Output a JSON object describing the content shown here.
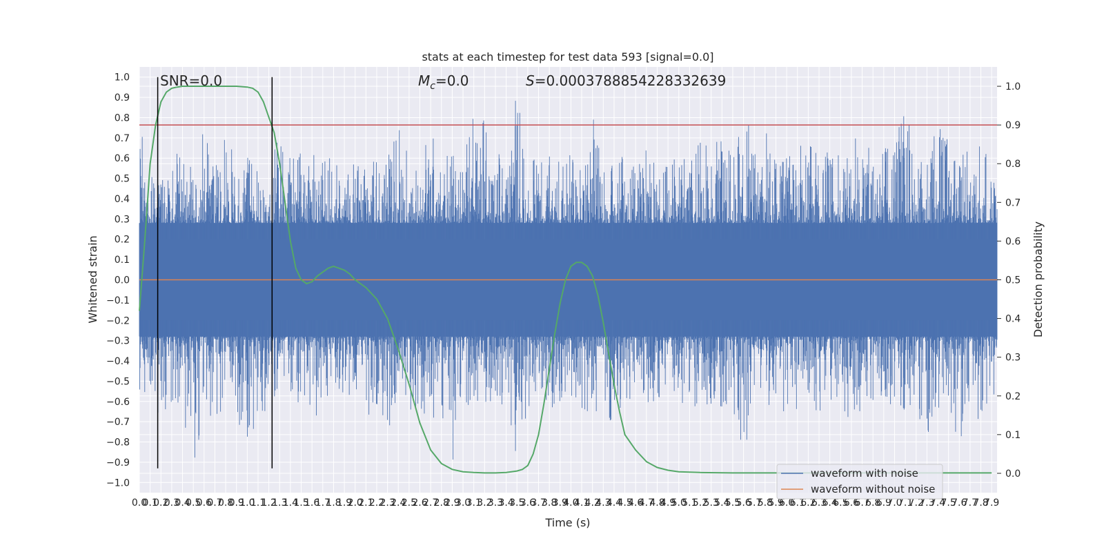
{
  "chart_data": {
    "type": "line",
    "title": "stats at each timestep for test data 593 [signal=0.0]",
    "xlabel": "Time (s)",
    "ylabel": "Whitened strain",
    "y2label": "Detection probability",
    "xlim": [
      0.0,
      7.95
    ],
    "ylim": [
      -1.05,
      1.05
    ],
    "y2lim": [
      -0.05,
      1.05
    ],
    "x_ticks": [
      0.0,
      0.1,
      0.2,
      0.3,
      0.4,
      0.5,
      0.6,
      0.7,
      0.8,
      0.9,
      1.0,
      1.1,
      1.2,
      1.3,
      1.4,
      1.5,
      1.6,
      1.7,
      1.8,
      1.9,
      2.0,
      2.1,
      2.2,
      2.3,
      2.4,
      2.5,
      2.6,
      2.7,
      2.8,
      2.9,
      3.0,
      3.1,
      3.2,
      3.3,
      3.4,
      3.5,
      3.6,
      3.7,
      3.8,
      3.9,
      4.0,
      4.1,
      4.2,
      4.3,
      4.4,
      4.5,
      4.6,
      4.7,
      4.8,
      4.9,
      5.0,
      5.1,
      5.2,
      5.3,
      5.4,
      5.5,
      5.6,
      5.7,
      5.8,
      5.9,
      6.0,
      6.1,
      6.2,
      6.3,
      6.4,
      6.5,
      6.6,
      6.7,
      6.8,
      6.9,
      7.0,
      7.1,
      7.2,
      7.3,
      7.4,
      7.5,
      7.6,
      7.7,
      7.8,
      7.9
    ],
    "x_tick_labels": [
      "0.0",
      "0.1",
      "0.2",
      "0.3",
      "0.4",
      "0.5",
      "0.6",
      "0.7",
      "0.8",
      "0.9",
      "1.0",
      "1.1",
      "1.2",
      "1.3",
      "1.4",
      "1.5",
      "1.6",
      "1.7",
      "1.8",
      "1.9",
      "2.0",
      "2.1",
      "2.2",
      "2.3",
      "2.4",
      "2.5",
      "2.6",
      "2.7",
      "2.8",
      "2.9",
      "3.0",
      "3.1",
      "3.2",
      "3.3",
      "3.4",
      "3.5",
      "3.6",
      "3.7",
      "3.8",
      "3.9",
      "4.0",
      "4.1",
      "4.2",
      "4.3",
      "4.4",
      "4.5",
      "4.6",
      "4.7",
      "4.8",
      "4.9",
      "5.0",
      "5.1",
      "5.2",
      "5.3",
      "5.4",
      "5.5",
      "5.6",
      "5.7",
      "5.8",
      "5.9",
      "6.0",
      "6.1",
      "6.2",
      "6.3",
      "6.4",
      "6.5",
      "6.6",
      "6.7",
      "6.8",
      "6.9",
      "7.0",
      "7.1",
      "7.2",
      "7.3",
      "7.4",
      "7.5",
      "7.6",
      "7.7",
      "7.8",
      "7.9"
    ],
    "y_ticks": [
      1.0,
      0.9,
      0.8,
      0.7,
      0.6,
      0.5,
      0.4,
      0.3,
      0.2,
      0.1,
      0.0,
      -0.1,
      -0.2,
      -0.3,
      -0.4,
      -0.5,
      -0.6,
      -0.7,
      -0.8,
      -0.9,
      -1.0
    ],
    "y_tick_labels": [
      "1.0",
      "0.9",
      "0.8",
      "0.7",
      "0.6",
      "0.5",
      "0.4",
      "0.3",
      "0.2",
      "0.1",
      "0.0",
      "−0.1",
      "−0.2",
      "−0.3",
      "−0.4",
      "−0.5",
      "−0.6",
      "−0.7",
      "−0.8",
      "−0.9",
      "−1.0"
    ],
    "y2_ticks": [
      1.0,
      0.9,
      0.8,
      0.7,
      0.6,
      0.5,
      0.4,
      0.3,
      0.2,
      0.1,
      0.0
    ],
    "y2_tick_labels": [
      "1.0",
      "0.9",
      "0.8",
      "0.7",
      "0.6",
      "0.5",
      "0.4",
      "0.3",
      "0.2",
      "0.1",
      "0.0"
    ],
    "grid": true,
    "legend_position": "bottom-right",
    "annotations": {
      "snr": "SNR=0.0",
      "mc_symbol": "M",
      "mc_sub": "c",
      "mc_value": "=0.0",
      "s_symbol": "S",
      "s_value": "=0.0003788854228332639"
    },
    "threshold_y2": 0.9,
    "vertical_lines_x": [
      0.17,
      1.23
    ],
    "series": [
      {
        "name": "waveform with noise",
        "color": "#4c72b0",
        "axis": "left",
        "envelope": {
          "x": [
            0.0,
            0.1,
            0.2,
            0.3,
            0.4,
            0.5,
            0.6,
            0.7,
            0.8,
            0.9,
            1.0,
            1.1,
            1.2,
            1.3,
            1.4,
            1.5,
            1.6,
            1.7,
            1.8,
            1.9,
            2.0,
            2.1,
            2.2,
            2.3,
            2.4,
            2.5,
            2.6,
            2.7,
            2.8,
            2.9,
            3.0,
            3.1,
            3.2,
            3.3,
            3.4,
            3.5,
            3.6,
            3.7,
            3.8,
            3.9,
            4.0,
            4.1,
            4.2,
            4.3,
            4.4,
            4.5,
            4.6,
            4.7,
            4.8,
            4.9,
            5.0,
            5.1,
            5.2,
            5.3,
            5.4,
            5.5,
            5.6,
            5.7,
            5.8,
            5.9,
            6.0,
            6.1,
            6.2,
            6.3,
            6.4,
            6.5,
            6.6,
            6.7,
            6.8,
            6.9,
            7.0,
            7.1,
            7.2,
            7.3,
            7.4,
            7.5,
            7.6,
            7.7,
            7.8,
            7.9
          ],
          "max": [
            0.76,
            0.6,
            0.5,
            0.52,
            0.75,
            0.62,
            0.74,
            0.62,
            0.84,
            0.55,
            0.62,
            0.57,
            0.6,
            0.75,
            0.62,
            0.66,
            0.64,
            0.7,
            0.66,
            0.55,
            0.58,
            0.54,
            0.6,
            0.63,
            0.85,
            0.6,
            0.6,
            0.75,
            0.62,
            0.62,
            0.58,
            0.83,
            0.9,
            0.62,
            0.64,
            0.98,
            0.62,
            0.58,
            0.64,
            0.6,
            0.66,
            0.62,
            0.83,
            0.62,
            0.64,
            0.6,
            0.62,
            0.64,
            0.66,
            0.58,
            0.62,
            0.66,
            0.72,
            0.62,
            0.74,
            0.64,
            0.91,
            0.62,
            0.78,
            0.64,
            0.62,
            0.7,
            0.74,
            0.6,
            0.77,
            0.64,
            0.8,
            0.62,
            0.72,
            0.66,
            0.74,
            0.99,
            0.62,
            0.66,
            0.8,
            0.7,
            0.72,
            0.62,
            0.74,
            0.6
          ],
          "min": [
            -0.56,
            -0.58,
            -0.7,
            -0.6,
            -0.66,
            -0.93,
            -0.68,
            -0.7,
            -0.62,
            -0.66,
            -0.88,
            -0.64,
            -0.77,
            -0.62,
            -0.6,
            -0.64,
            -0.72,
            -0.7,
            -0.62,
            -0.66,
            -0.58,
            -0.68,
            -0.64,
            -0.76,
            -0.62,
            -0.66,
            -0.64,
            -0.7,
            -0.68,
            -0.92,
            -0.62,
            -0.66,
            -0.64,
            -0.6,
            -0.68,
            -0.9,
            -0.64,
            -0.62,
            -0.66,
            -0.62,
            -0.6,
            -0.64,
            -0.68,
            -0.66,
            -0.77,
            -0.62,
            -0.6,
            -0.66,
            -0.64,
            -0.62,
            -0.6,
            -0.64,
            -0.66,
            -0.62,
            -0.68,
            -0.64,
            -0.92,
            -0.66,
            -0.62,
            -0.7,
            -0.64,
            -0.66,
            -0.62,
            -0.68,
            -0.66,
            -0.64,
            -0.7,
            -0.66,
            -0.62,
            -0.64,
            -0.68,
            -0.66,
            -0.8,
            -0.78,
            -0.66,
            -0.64,
            -0.82,
            -0.62,
            -0.76,
            -0.68
          ]
        }
      },
      {
        "name": "waveform without noise",
        "color": "#dd8452",
        "axis": "left",
        "x": [
          0.0,
          7.95
        ],
        "y": [
          0.0,
          0.0
        ]
      },
      {
        "name": "",
        "color": "#55a868",
        "axis": "right",
        "x": [
          0.0,
          0.05,
          0.1,
          0.15,
          0.2,
          0.25,
          0.3,
          0.35,
          0.4,
          0.5,
          0.6,
          0.7,
          0.8,
          0.9,
          1.0,
          1.05,
          1.1,
          1.15,
          1.2,
          1.25,
          1.3,
          1.35,
          1.4,
          1.45,
          1.5,
          1.55,
          1.6,
          1.65,
          1.7,
          1.75,
          1.8,
          1.85,
          1.9,
          1.95,
          2.0,
          2.1,
          2.2,
          2.3,
          2.4,
          2.5,
          2.6,
          2.7,
          2.8,
          2.9,
          3.0,
          3.1,
          3.2,
          3.3,
          3.4,
          3.5,
          3.55,
          3.6,
          3.65,
          3.7,
          3.75,
          3.8,
          3.85,
          3.9,
          3.95,
          4.0,
          4.05,
          4.1,
          4.15,
          4.2,
          4.25,
          4.3,
          4.35,
          4.4,
          4.45,
          4.5,
          4.6,
          4.7,
          4.8,
          4.9,
          5.0,
          5.2,
          5.5,
          6.0,
          6.5,
          7.0,
          7.5,
          7.9
        ],
        "y": [
          0.42,
          0.6,
          0.8,
          0.9,
          0.96,
          0.985,
          0.995,
          0.998,
          1.0,
          1.0,
          1.0,
          1.0,
          1.0,
          1.0,
          0.998,
          0.995,
          0.985,
          0.96,
          0.92,
          0.88,
          0.8,
          0.7,
          0.6,
          0.53,
          0.5,
          0.49,
          0.495,
          0.51,
          0.52,
          0.53,
          0.535,
          0.53,
          0.525,
          0.515,
          0.5,
          0.48,
          0.45,
          0.4,
          0.32,
          0.23,
          0.13,
          0.06,
          0.025,
          0.01,
          0.004,
          0.002,
          0.001,
          0.001,
          0.002,
          0.006,
          0.01,
          0.02,
          0.05,
          0.1,
          0.18,
          0.27,
          0.36,
          0.44,
          0.5,
          0.535,
          0.545,
          0.545,
          0.535,
          0.51,
          0.46,
          0.39,
          0.31,
          0.23,
          0.16,
          0.1,
          0.06,
          0.03,
          0.015,
          0.008,
          0.004,
          0.002,
          0.001,
          0.001,
          0.001,
          0.001,
          0.001,
          0.001
        ]
      }
    ]
  }
}
